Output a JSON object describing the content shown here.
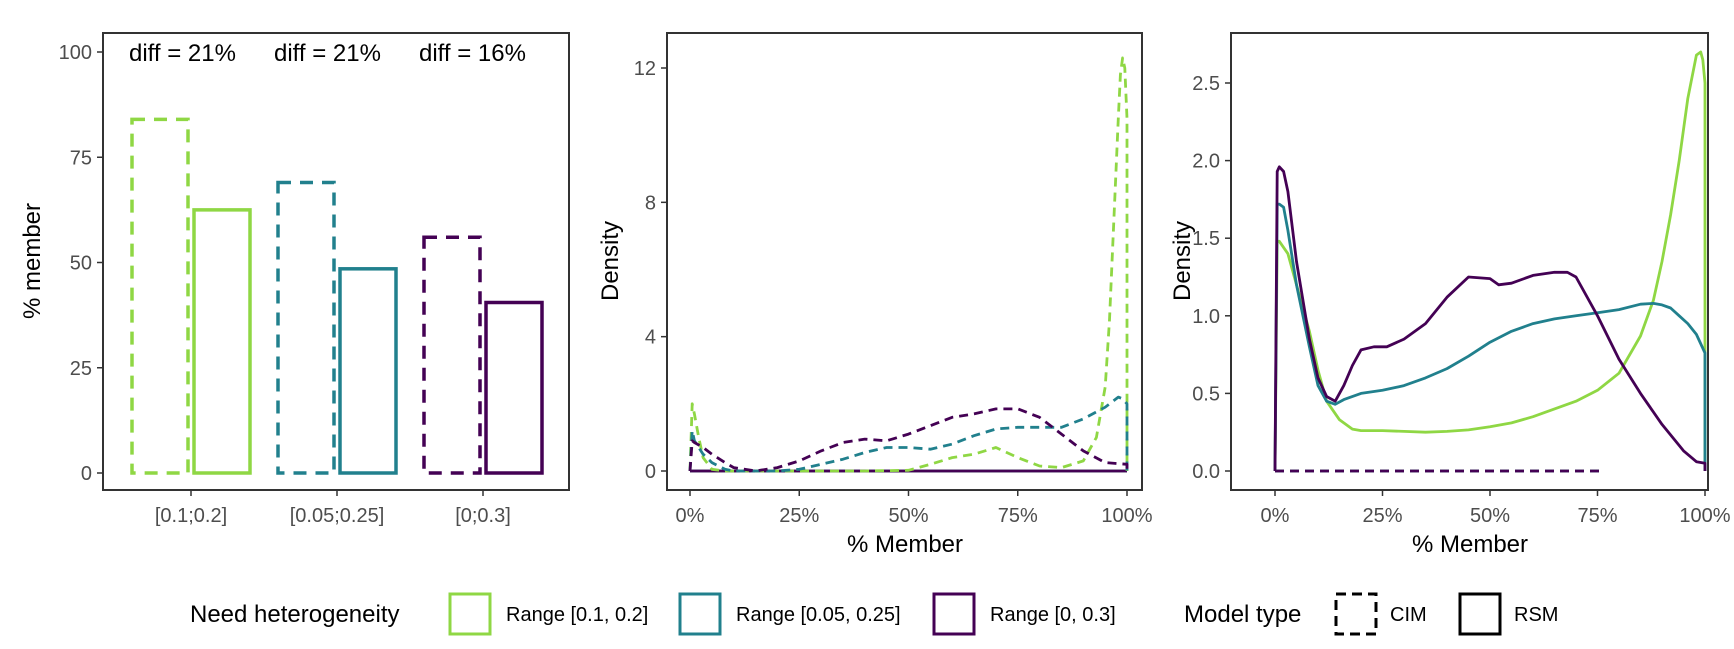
{
  "colors": {
    "range_01_02": "#8fd744",
    "range_005_025": "#21808d",
    "range_0_03": "#440154"
  },
  "legend": {
    "need_title": "Need heterogeneity",
    "need_items": [
      {
        "label": "Range [0.1, 0.2]",
        "color": "#8fd744"
      },
      {
        "label": "Range [0.05, 0.25]",
        "color": "#21808d"
      },
      {
        "label": "Range [0, 0.3]",
        "color": "#440154"
      }
    ],
    "model_title": "Model type",
    "model_items": [
      {
        "label": "CIM",
        "linetype": "dashed"
      },
      {
        "label": "RSM",
        "linetype": "solid"
      }
    ]
  },
  "chart_data": [
    {
      "type": "bar",
      "ylabel": "% member",
      "xlabel": "",
      "ylim": [
        0,
        100
      ],
      "yticks": [
        "0",
        "25",
        "50",
        "75",
        "100"
      ],
      "categories": [
        "[0.1;0.2]",
        "[0.05;0.25]",
        "[0;0.3]"
      ],
      "series": [
        {
          "name": "CIM",
          "linetype": "dashed",
          "values": [
            84,
            69,
            56
          ]
        },
        {
          "name": "RSM",
          "linetype": "solid",
          "values": [
            62.5,
            48.5,
            40.5
          ]
        }
      ],
      "annotations": [
        "diff = 21%",
        "diff = 21%",
        "diff = 16%"
      ]
    },
    {
      "type": "line",
      "xlabel": "% Member",
      "ylabel": "Density",
      "xlim": [
        0,
        100
      ],
      "ylim": [
        0,
        13
      ],
      "xticks": [
        "0%",
        "25%",
        "50%",
        "75%",
        "100%"
      ],
      "yticks": [
        "0",
        "4",
        "8",
        "12"
      ],
      "series": [
        {
          "group": "Range [0.1, 0.2]",
          "model": "CIM",
          "x": [
            0,
            0.5,
            1,
            2,
            3,
            5,
            8,
            10,
            20,
            30,
            40,
            50,
            55,
            60,
            65,
            70,
            75,
            80,
            85,
            90,
            93,
            95,
            96,
            97,
            98,
            98.5,
            99,
            99.5,
            100,
            100
          ],
          "y": [
            0,
            2.0,
            1.7,
            1.0,
            0.4,
            0.05,
            0,
            0,
            0,
            0,
            0,
            0.02,
            0.2,
            0.4,
            0.5,
            0.7,
            0.4,
            0.15,
            0.1,
            0.3,
            1.0,
            2.5,
            4.5,
            7.5,
            10.5,
            11.8,
            12.3,
            12.0,
            10.5,
            0
          ]
        },
        {
          "group": "Range [0.05, 0.25]",
          "model": "CIM",
          "x": [
            0,
            0.5,
            1,
            3,
            5,
            8,
            10,
            20,
            25,
            30,
            35,
            40,
            45,
            50,
            55,
            60,
            65,
            70,
            75,
            80,
            85,
            90,
            95,
            97,
            98,
            99,
            100,
            100
          ],
          "y": [
            0,
            1.2,
            0.9,
            0.5,
            0.25,
            0.05,
            0,
            0,
            0.05,
            0.2,
            0.35,
            0.55,
            0.7,
            0.7,
            0.65,
            0.8,
            1.05,
            1.25,
            1.3,
            1.3,
            1.3,
            1.55,
            1.9,
            2.1,
            2.2,
            2.15,
            2.0,
            0
          ]
        },
        {
          "group": "Range [0, 0.3]",
          "model": "CIM",
          "x": [
            0,
            0.5,
            1,
            3,
            5,
            8,
            10,
            15,
            20,
            25,
            30,
            35,
            40,
            45,
            50,
            55,
            60,
            65,
            70,
            75,
            80,
            85,
            90,
            95,
            100,
            100
          ],
          "y": [
            0,
            0.9,
            0.85,
            0.7,
            0.5,
            0.25,
            0.1,
            0,
            0.1,
            0.3,
            0.6,
            0.85,
            0.95,
            0.9,
            1.1,
            1.35,
            1.6,
            1.7,
            1.85,
            1.85,
            1.6,
            1.1,
            0.6,
            0.25,
            0.2,
            0
          ]
        },
        {
          "group": "Range [0.1, 0.2]",
          "model": "RSM",
          "x": [
            0,
            100
          ],
          "y": [
            0,
            0
          ]
        },
        {
          "group": "Range [0.05, 0.25]",
          "model": "RSM",
          "x": [
            0,
            100
          ],
          "y": [
            0,
            0
          ]
        },
        {
          "group": "Range [0, 0.3]",
          "model": "RSM",
          "x": [
            0,
            100
          ],
          "y": [
            0,
            0
          ]
        }
      ]
    },
    {
      "type": "line",
      "xlabel": "% Member",
      "ylabel": "Density",
      "xlim": [
        0,
        100
      ],
      "ylim": [
        0,
        2.8
      ],
      "xticks": [
        "0%",
        "25%",
        "50%",
        "75%",
        "100%"
      ],
      "yticks": [
        "0.0",
        "0.5",
        "1.0",
        "1.5",
        "2.0",
        "2.5"
      ],
      "series": [
        {
          "group": "Range [0.1, 0.2]",
          "model": "RSM",
          "x": [
            0,
            0.5,
            1,
            3,
            5,
            8,
            10,
            12,
            15,
            18,
            20,
            25,
            30,
            35,
            40,
            45,
            50,
            55,
            60,
            65,
            70,
            75,
            80,
            85,
            88,
            90,
            92,
            94,
            96,
            98,
            99,
            99.5,
            100,
            100
          ],
          "y": [
            0,
            1.48,
            1.48,
            1.4,
            1.2,
            0.9,
            0.65,
            0.45,
            0.33,
            0.27,
            0.26,
            0.26,
            0.255,
            0.25,
            0.255,
            0.265,
            0.285,
            0.31,
            0.35,
            0.4,
            0.45,
            0.52,
            0.63,
            0.87,
            1.1,
            1.35,
            1.65,
            2.0,
            2.4,
            2.68,
            2.7,
            2.65,
            2.5,
            0
          ]
        },
        {
          "group": "Range [0.05, 0.25]",
          "model": "RSM",
          "x": [
            0,
            0.5,
            1,
            2,
            3,
            5,
            8,
            10,
            12,
            14,
            16,
            20,
            25,
            30,
            35,
            40,
            45,
            50,
            55,
            60,
            65,
            70,
            75,
            80,
            85,
            88,
            90,
            92,
            94,
            96,
            98,
            100,
            100
          ],
          "y": [
            0,
            1.72,
            1.72,
            1.7,
            1.55,
            1.2,
            0.8,
            0.55,
            0.45,
            0.43,
            0.46,
            0.5,
            0.52,
            0.55,
            0.6,
            0.66,
            0.74,
            0.83,
            0.9,
            0.95,
            0.98,
            1.0,
            1.02,
            1.04,
            1.075,
            1.08,
            1.07,
            1.05,
            1.0,
            0.95,
            0.88,
            0.76,
            0
          ]
        },
        {
          "group": "Range [0, 0.3]",
          "model": "RSM",
          "x": [
            0,
            0.5,
            1,
            2,
            3,
            5,
            8,
            10,
            12,
            14,
            16,
            18,
            20,
            23,
            26,
            30,
            35,
            40,
            45,
            50,
            52,
            55,
            60,
            65,
            68,
            70,
            75,
            80,
            85,
            90,
            95,
            98,
            100,
            100
          ],
          "y": [
            0,
            1.93,
            1.96,
            1.93,
            1.8,
            1.35,
            0.85,
            0.6,
            0.48,
            0.45,
            0.55,
            0.68,
            0.78,
            0.8,
            0.8,
            0.85,
            0.95,
            1.12,
            1.25,
            1.24,
            1.2,
            1.21,
            1.26,
            1.28,
            1.28,
            1.25,
            1.0,
            0.72,
            0.5,
            0.3,
            0.13,
            0.06,
            0.05,
            0
          ]
        },
        {
          "group": "Range [0.1, 0.2]",
          "model": "CIM",
          "x": [
            0,
            76
          ],
          "y": [
            0,
            0
          ]
        },
        {
          "group": "Range [0.05, 0.25]",
          "model": "CIM",
          "x": [
            0,
            76
          ],
          "y": [
            0,
            0
          ]
        },
        {
          "group": "Range [0, 0.3]",
          "model": "CIM",
          "x": [
            0,
            76
          ],
          "y": [
            0,
            0
          ]
        }
      ]
    }
  ]
}
